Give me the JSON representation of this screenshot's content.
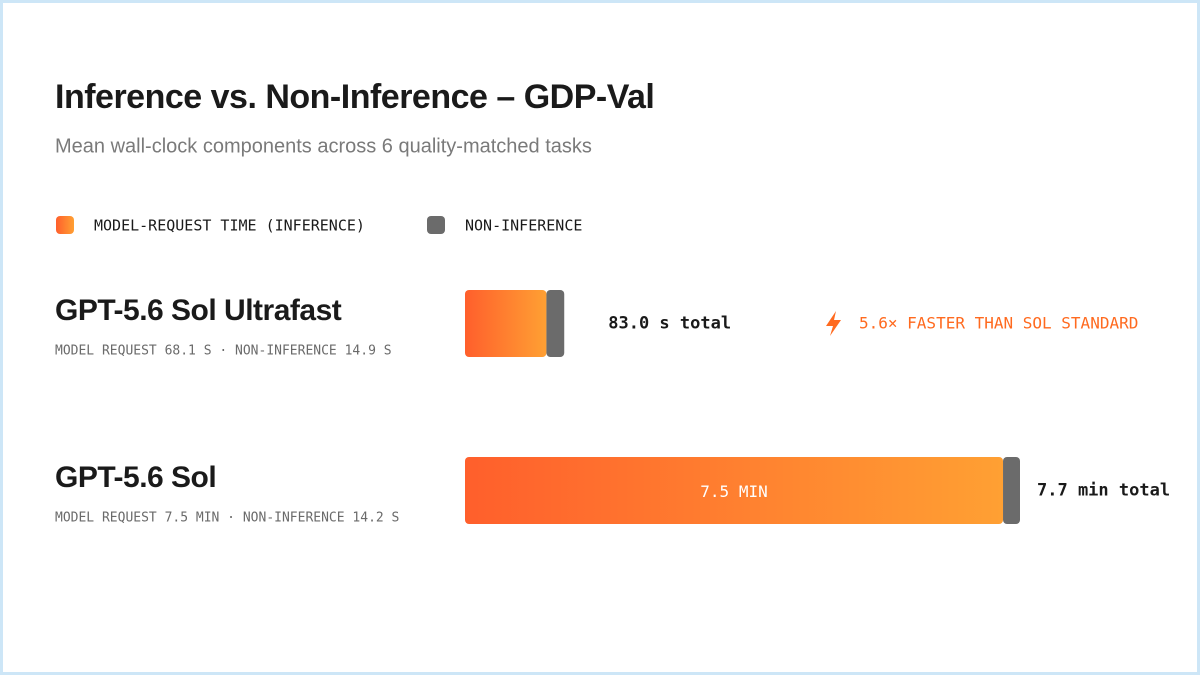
{
  "chart_data": {
    "type": "bar",
    "orientation": "horizontal",
    "stacked": true,
    "title": "Inference vs. Non-Inference – GDP-Val",
    "subtitle": "Mean wall-clock components across 6 quality-matched tasks",
    "categories": [
      "GPT-5.6 Sol Ultrafast",
      "GPT-5.6 Sol"
    ],
    "category_notes": [
      "MODEL REQUEST 68.1 S · NON-INFERENCE 14.9 S",
      "MODEL REQUEST 7.5 MIN · NON-INFERENCE 14.2 S"
    ],
    "series": [
      {
        "name": "MODEL-REQUEST TIME (INFERENCE)",
        "color": "#ff5f2c",
        "values": [
          68.1,
          450
        ],
        "value_labels": [
          null,
          "7.5 MIN"
        ]
      },
      {
        "name": "NON-INFERENCE",
        "color": "#6b6b6b",
        "values": [
          14.9,
          14.2
        ]
      }
    ],
    "total_labels": [
      "83.0 s total",
      "7.7 min total"
    ],
    "annotation": {
      "text": "5.6× FASTER THAN SOL STANDARD",
      "color": "#ff6a1f"
    },
    "legend": "top-left"
  }
}
